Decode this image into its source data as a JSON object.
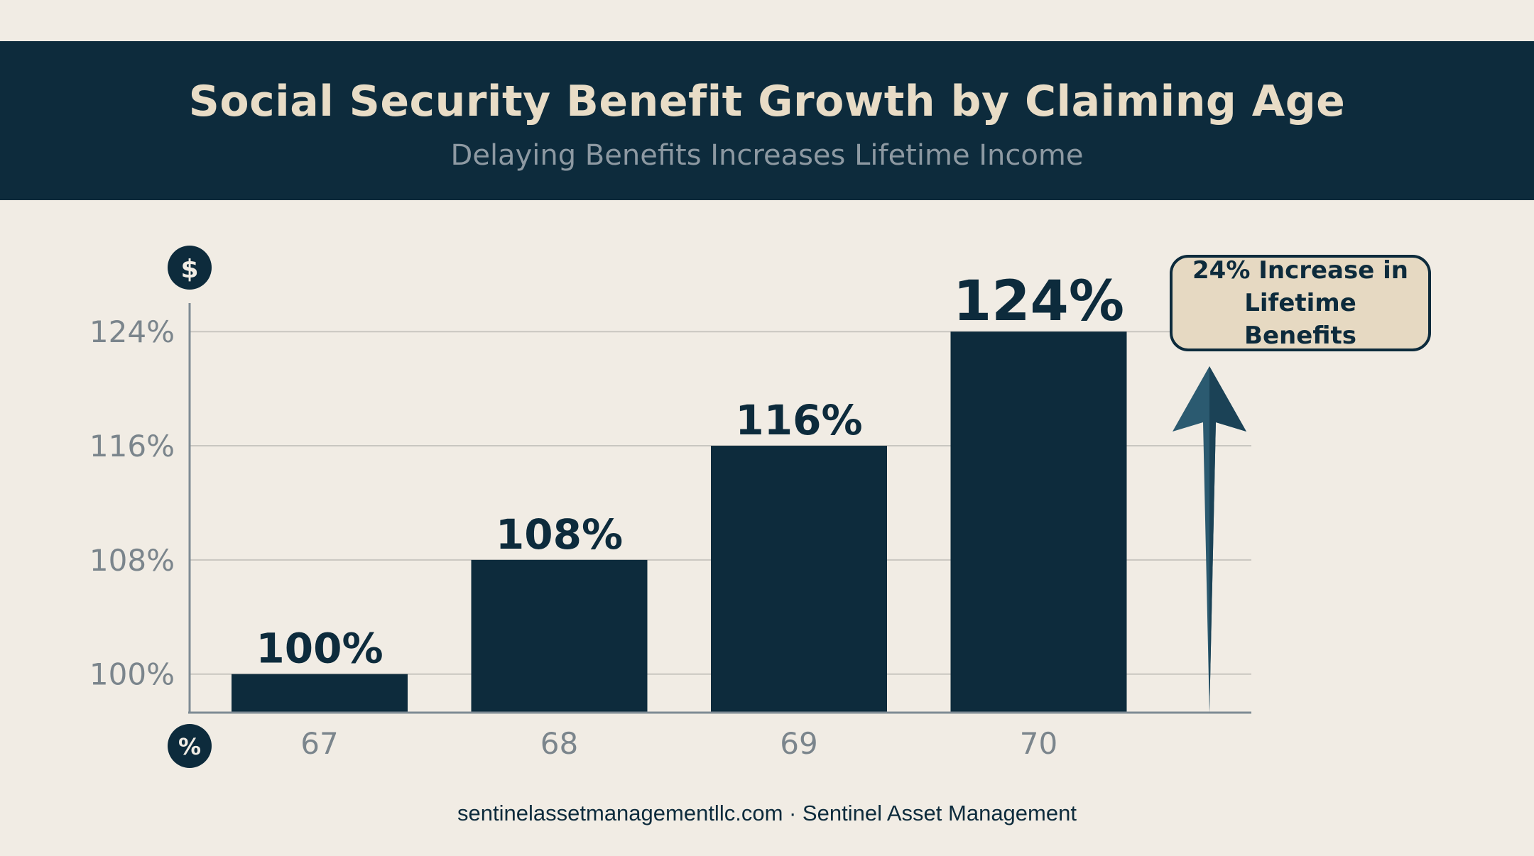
{
  "header": {
    "title": "Social Security Benefit Growth by Claiming Age",
    "subtitle": "Delaying Benefits Increases Lifetime Income"
  },
  "callout": {
    "text": "24% Increase in Lifetime Benefits"
  },
  "footer": {
    "text": "sentinelassetmanagementllc.com · Sentinel Asset Management"
  },
  "axis_icons": {
    "y_icon": "$",
    "x_icon": "%"
  },
  "colors": {
    "bar": "#0d2b3c",
    "banner": "#0d2b3c",
    "title": "#e8dcc6",
    "background": "#f1ece4",
    "callout_fill": "#e6d9c2",
    "arrow": "#2b5a70"
  },
  "chart_data": {
    "type": "bar",
    "title": "Social Security Benefit Growth by Claiming Age",
    "subtitle": "Delaying Benefits Increases Lifetime Income",
    "categories": [
      "67",
      "68",
      "69",
      "70"
    ],
    "values": [
      100,
      108,
      116,
      124
    ],
    "data_labels": [
      "100%",
      "108%",
      "116%",
      "124%"
    ],
    "yticks": [
      100,
      108,
      116,
      124
    ],
    "ytick_labels": [
      "100%",
      "108%",
      "116%",
      "124%"
    ],
    "ylim": [
      97.3,
      126
    ],
    "grid": true,
    "annotation": "24% Increase in Lifetime Benefits"
  }
}
